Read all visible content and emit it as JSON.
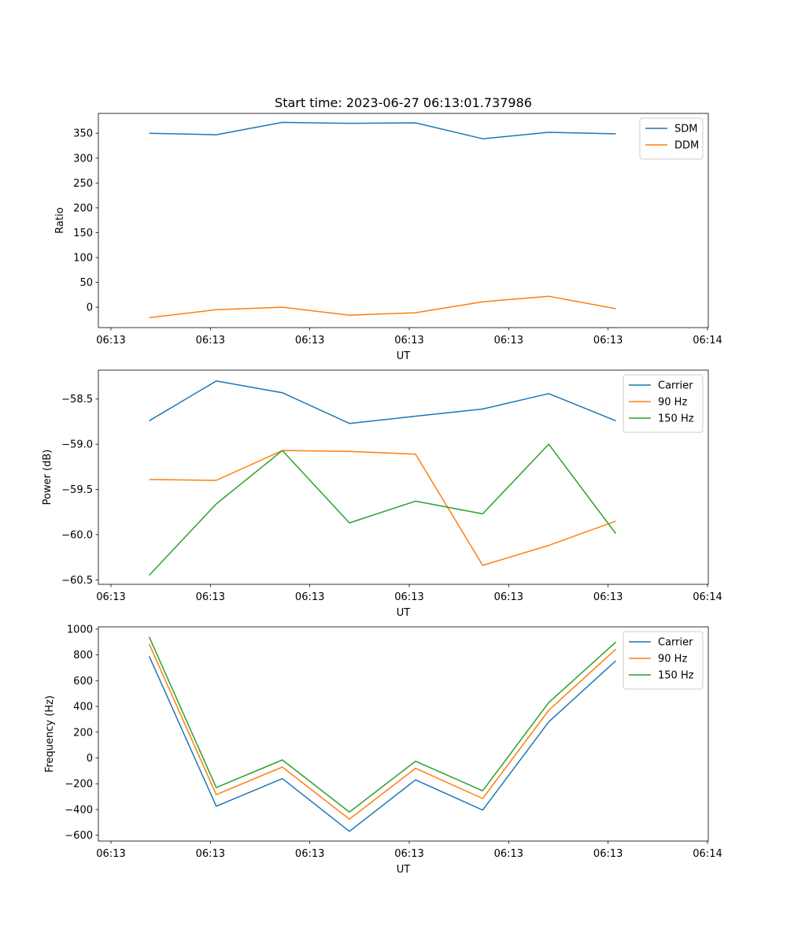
{
  "chart_data": [
    {
      "type": "line",
      "title": "Start time: 2023-06-27 06:13:01.737986",
      "xlabel": "UT",
      "ylabel": "Ratio",
      "x_tick_labels": [
        "06:13",
        "06:13",
        "06:13",
        "06:13",
        "06:13",
        "06:13",
        "06:13"
      ],
      "x_tick_last": "06:14",
      "x_points": [
        0.5,
        1.16,
        1.81,
        2.47,
        3.12,
        3.78,
        4.43,
        5.09
      ],
      "xlim": [
        0,
        6
      ],
      "ylim": [
        -41,
        390
      ],
      "yticks": [
        0,
        50,
        100,
        150,
        200,
        250,
        300,
        350
      ],
      "legend_position": "top-right",
      "series": [
        {
          "name": "SDM",
          "color": "#1f77b4",
          "values": [
            350,
            347,
            372,
            370,
            371,
            339,
            352,
            349
          ]
        },
        {
          "name": "DDM",
          "color": "#ff7f0e",
          "values": [
            -21,
            -5,
            0,
            -16,
            -11,
            11,
            22,
            -3
          ]
        }
      ]
    },
    {
      "type": "line",
      "title": "",
      "xlabel": "UT",
      "ylabel": "Power (dB)",
      "x_tick_labels": [
        "06:13",
        "06:13",
        "06:13",
        "06:13",
        "06:13",
        "06:13",
        "06:13"
      ],
      "x_tick_last": "06:14",
      "x_points": [
        0.5,
        1.16,
        1.81,
        2.47,
        3.12,
        3.78,
        4.43,
        5.09
      ],
      "xlim": [
        0,
        6
      ],
      "ylim": [
        -60.55,
        -58.18
      ],
      "yticks": [
        -60.5,
        -60.0,
        -59.5,
        -59.0,
        -58.5
      ],
      "legend_position": "top-right",
      "series": [
        {
          "name": "Carrier",
          "color": "#1f77b4",
          "values": [
            -58.74,
            -58.3,
            -58.43,
            -58.77,
            -58.69,
            -58.61,
            -58.44,
            -58.74
          ]
        },
        {
          "name": "90 Hz",
          "color": "#ff7f0e",
          "values": [
            -59.39,
            -59.4,
            -59.07,
            -59.08,
            -59.11,
            -60.34,
            -60.12,
            -59.85
          ]
        },
        {
          "name": "150 Hz",
          "color": "#2ca02c",
          "values": [
            -60.45,
            -59.66,
            -59.07,
            -59.87,
            -59.63,
            -59.77,
            -59.0,
            -59.99
          ]
        }
      ]
    },
    {
      "type": "line",
      "title": "",
      "xlabel": "UT",
      "ylabel": "Frequency (Hz)",
      "x_tick_labels": [
        "06:13",
        "06:13",
        "06:13",
        "06:13",
        "06:13",
        "06:13",
        "06:13"
      ],
      "x_tick_last": "06:14",
      "x_points": [
        0.5,
        1.16,
        1.81,
        2.47,
        3.12,
        3.78,
        4.43,
        5.09
      ],
      "xlim": [
        0,
        6
      ],
      "ylim": [
        -645,
        1018
      ],
      "yticks": [
        -600,
        -400,
        -200,
        0,
        200,
        400,
        600,
        800,
        1000
      ],
      "legend_position": "top-right",
      "series": [
        {
          "name": "Carrier",
          "color": "#1f77b4",
          "values": [
            790,
            -375,
            -160,
            -570,
            -170,
            -405,
            280,
            755
          ]
        },
        {
          "name": "90 Hz",
          "color": "#ff7f0e",
          "values": [
            885,
            -285,
            -70,
            -475,
            -80,
            -315,
            370,
            845
          ]
        },
        {
          "name": "150 Hz",
          "color": "#2ca02c",
          "values": [
            940,
            -230,
            -15,
            -420,
            -25,
            -255,
            430,
            900
          ]
        }
      ]
    }
  ]
}
